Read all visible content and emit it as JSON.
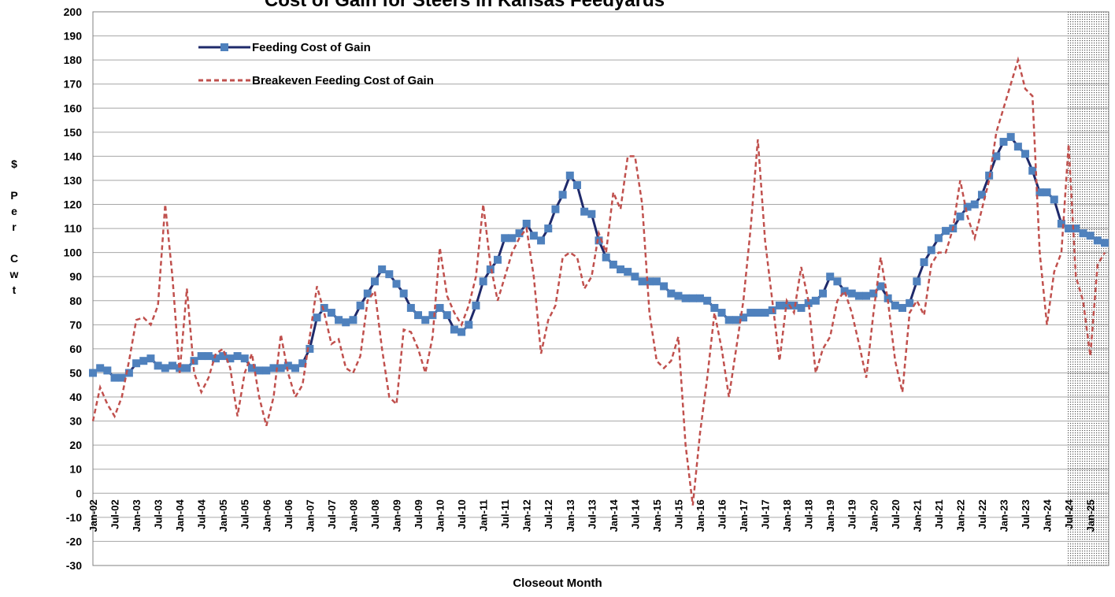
{
  "chart_data": {
    "type": "line",
    "title": "Cost of Gain for Steers in Kansas Feedyards",
    "x_label": "Closeout Month",
    "y_label": "$ Per Cwt",
    "categories": [
      "Jan-02",
      null,
      null,
      "Jul-02",
      null,
      null,
      "Jan-03",
      null,
      null,
      "Jul-03",
      null,
      null,
      "Jan-04",
      null,
      null,
      "Jul-04",
      null,
      null,
      "Jan-05",
      null,
      null,
      "Jul-05",
      null,
      null,
      "Jan-06",
      null,
      null,
      "Jul-06",
      null,
      null,
      "Jan-07",
      null,
      null,
      "Jul-07",
      null,
      null,
      "Jan-08",
      null,
      null,
      "Jul-08",
      null,
      null,
      "Jan-09",
      null,
      null,
      "Jul-09",
      null,
      null,
      "Jan-10",
      null,
      null,
      "Jul-10",
      null,
      null,
      "Jan-11",
      null,
      null,
      "Jul-11",
      null,
      null,
      "Jan-12",
      null,
      null,
      "Jul-12",
      null,
      null,
      "Jan-13",
      null,
      null,
      "Jul-13",
      null,
      null,
      "Jan-14",
      null,
      null,
      "Jul-14",
      null,
      null,
      "Jan-15",
      null,
      null,
      "Jul-15",
      null,
      null,
      "Jan-16",
      null,
      null,
      "Jul-16",
      null,
      null,
      "Jan-17",
      null,
      null,
      "Jul-17",
      null,
      null,
      "Jan-18",
      null,
      null,
      "Jul-18",
      null,
      null,
      "Jan-19",
      null,
      null,
      "Jul-19",
      null,
      null,
      "Jan-20",
      null,
      null,
      "Jul-20",
      null,
      null,
      "Jan-21",
      null,
      null,
      "Jul-21",
      null,
      null,
      "Jan-22",
      null,
      null,
      "Jul-22",
      null,
      null,
      "Jan-23",
      null,
      null,
      "Jul-23",
      null,
      null,
      "Jan-24",
      null,
      null,
      "Jul-24",
      null,
      null,
      "Jan-25",
      null,
      null
    ],
    "series": [
      {
        "name": "Feeding Cost of Gain",
        "color": "#4f81bd",
        "line_color": "#1f2a6b",
        "style": "solid-markers",
        "values": [
          50,
          52,
          51,
          48,
          48,
          50,
          54,
          55,
          56,
          53,
          52,
          53,
          52,
          52,
          55,
          57,
          57,
          56,
          57,
          56,
          57,
          56,
          52,
          51,
          51,
          52,
          52,
          53,
          52,
          54,
          60,
          73,
          77,
          75,
          72,
          71,
          72,
          78,
          83,
          88,
          93,
          91,
          87,
          83,
          77,
          74,
          72,
          74,
          77,
          74,
          68,
          67,
          70,
          78,
          88,
          93,
          97,
          106,
          106,
          108,
          112,
          107,
          105,
          110,
          118,
          124,
          132,
          128,
          117,
          116,
          105,
          98,
          95,
          93,
          92,
          90,
          88,
          88,
          88,
          86,
          83,
          82,
          81,
          81,
          81,
          80,
          77,
          75,
          72,
          72,
          73,
          75,
          75,
          75,
          76,
          78,
          78,
          78,
          77,
          79,
          80,
          83,
          90,
          88,
          84,
          83,
          82,
          82,
          83,
          86,
          81,
          78,
          77,
          79,
          88,
          96,
          101,
          106,
          109,
          110,
          115,
          119,
          120,
          124,
          132,
          140,
          146,
          148,
          144,
          141,
          134,
          125,
          125,
          122,
          112,
          110,
          110,
          108,
          107,
          105,
          104
        ]
      },
      {
        "name": "Breakeven Feeding Cost of Gain",
        "color": "#c0504d",
        "style": "dashed",
        "values": [
          30,
          44,
          37,
          32,
          40,
          55,
          72,
          73,
          70,
          78,
          120,
          90,
          50,
          85,
          50,
          42,
          48,
          58,
          60,
          52,
          32,
          50,
          58,
          40,
          28,
          40,
          66,
          50,
          40,
          45,
          65,
          86,
          75,
          62,
          64,
          52,
          50,
          57,
          80,
          84,
          60,
          40,
          37,
          68,
          67,
          60,
          50,
          65,
          102,
          82,
          75,
          70,
          78,
          90,
          120,
          95,
          80,
          90,
          100,
          106,
          110,
          90,
          58,
          72,
          78,
          98,
          100,
          98,
          85,
          90,
          108,
          100,
          125,
          118,
          140,
          140,
          120,
          75,
          55,
          52,
          55,
          65,
          20,
          -5,
          25,
          48,
          75,
          60,
          40,
          60,
          80,
          110,
          147,
          105,
          80,
          55,
          80,
          75,
          94,
          80,
          50,
          60,
          65,
          80,
          84,
          75,
          62,
          48,
          75,
          98,
          80,
          55,
          42,
          75,
          80,
          74,
          95,
          100,
          100,
          110,
          130,
          115,
          106,
          118,
          130,
          150,
          160,
          170,
          180,
          168,
          165,
          100,
          70,
          92,
          100,
          145,
          90,
          80,
          57,
          95,
          100
        ]
      }
    ],
    "ylim": [
      -30,
      200
    ],
    "yticks": [
      -30,
      -20,
      -10,
      0,
      10,
      20,
      30,
      40,
      50,
      60,
      70,
      80,
      90,
      100,
      110,
      120,
      130,
      140,
      150,
      160,
      170,
      180,
      190,
      200
    ],
    "grid": true,
    "legend": "upper left"
  }
}
